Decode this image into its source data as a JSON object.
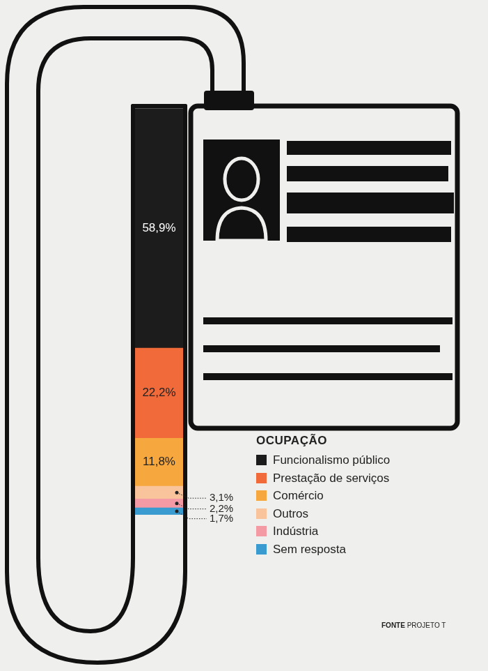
{
  "chart_data": {
    "type": "bar",
    "title": "OCUPAÇÃO",
    "categories": [
      null
    ],
    "series": [
      {
        "name": "Sem resposta",
        "color": "#3a9bd0",
        "values": [
          1.7
        ],
        "value_labels": [
          "1,7%"
        ]
      },
      {
        "name": "Indústria",
        "color": "#f39aa5",
        "values": [
          2.2
        ],
        "value_labels": [
          "2,2%"
        ]
      },
      {
        "name": "Outros",
        "color": "#f9c49c",
        "values": [
          3.1
        ],
        "value_labels": [
          "3,1%"
        ]
      },
      {
        "name": "Comércio",
        "color": "#f6a83e",
        "values": [
          11.8
        ],
        "value_labels": [
          "11,8%"
        ]
      },
      {
        "name": "Prestação de serviços",
        "color": "#f06a3a",
        "values": [
          22.2
        ],
        "value_labels": [
          "22,2%"
        ]
      },
      {
        "name": "Funcionalismo público",
        "color": "#1c1c1c",
        "values": [
          58.9
        ],
        "value_labels": [
          "58,9%"
        ]
      }
    ],
    "ylim": [
      0,
      100
    ],
    "yticks": [
      0,
      100
    ],
    "stacked": true,
    "data_labels": true,
    "tick_labels": false,
    "grid": false,
    "legend": "right",
    "source": "FONTE PROJETO T"
  }
}
